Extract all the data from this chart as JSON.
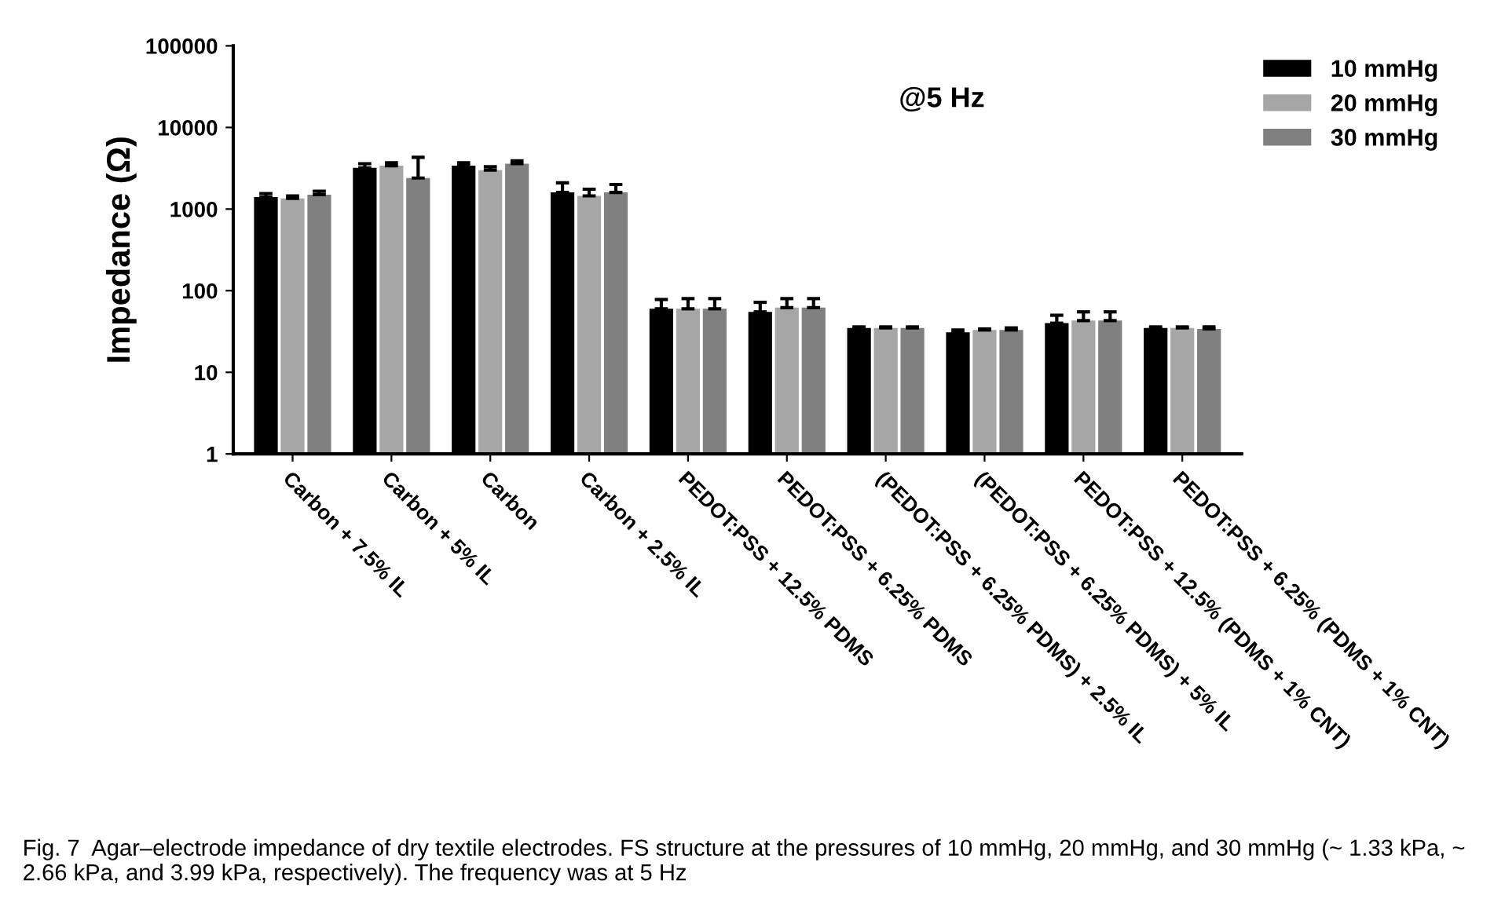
{
  "chart_data": {
    "type": "bar",
    "ylabel": "Impedance (Ω)",
    "log": "y",
    "ylim": [
      1,
      100000
    ],
    "yticks": [
      1,
      10,
      100,
      1000,
      10000,
      100000
    ],
    "legend": "top right",
    "grid": false,
    "categories": [
      "Carbon + 7.5% IL",
      "Carbon + 5% IL",
      "Carbon",
      "Carbon + 2.5% IL",
      "PEDOT:PSS + 12.5% PDMS",
      "PEDOT:PSS + 6.25% PDMS",
      "(PEDOT:PSS + 6.25% PDMS) + 2.5% IL",
      "(PEDOT:PSS + 6.25% PDMS) + 5% IL",
      "PEDOT:PSS + 12.5% (PDMS + 1% CNT)",
      "PEDOT:PSS + 6.25% (PDMS + 1% CNT)"
    ],
    "series": [
      {
        "name": "10 mmHg",
        "color": "#000000",
        "values": [
          1400,
          3200,
          3400,
          1600,
          60,
          55,
          35,
          31,
          40,
          35
        ],
        "errors": [
          [
            1400,
            1550
          ],
          [
            3200,
            3600
          ],
          [
            3400,
            3700
          ],
          [
            1600,
            2100
          ],
          [
            60,
            78
          ],
          [
            55,
            72
          ],
          [
            35,
            36
          ],
          [
            31,
            33
          ],
          [
            40,
            50
          ],
          [
            35,
            36
          ]
        ]
      },
      {
        "name": "20 mmHg",
        "color": "#a6a6a6",
        "values": [
          1350,
          3400,
          3000,
          1450,
          60,
          62,
          35,
          33,
          43,
          35
        ],
        "errors": [
          [
            1350,
            1450
          ],
          [
            3400,
            3700
          ],
          [
            3000,
            3300
          ],
          [
            1450,
            1750
          ],
          [
            60,
            80
          ],
          [
            62,
            80
          ],
          [
            35,
            36
          ],
          [
            33,
            34
          ],
          [
            43,
            55
          ],
          [
            35,
            36
          ]
        ]
      },
      {
        "name": "30 mmHg",
        "color": "#808080",
        "values": [
          1500,
          2400,
          3600,
          1600,
          60,
          62,
          35,
          33,
          43,
          34
        ],
        "errors": [
          [
            1500,
            1650
          ],
          [
            2400,
            4300
          ],
          [
            3600,
            3900
          ],
          [
            1600,
            2000
          ],
          [
            60,
            80
          ],
          [
            62,
            80
          ],
          [
            35,
            36
          ],
          [
            33,
            35
          ],
          [
            43,
            55
          ],
          [
            34,
            36
          ]
        ]
      }
    ],
    "annotations": [
      {
        "text": "@5 Hz"
      },
      {
        "text": "Fig. 7  Agar–electrode impedance of dry textile electrodes. FS structure at the pressures of 10 mmHg, 20 mmHg, and 30 mmHg (~ 1.33 kPa, ~ 2.66 kPa, and 3.99 kPa, respectively). The frequency was at 5 Hz"
      }
    ]
  }
}
